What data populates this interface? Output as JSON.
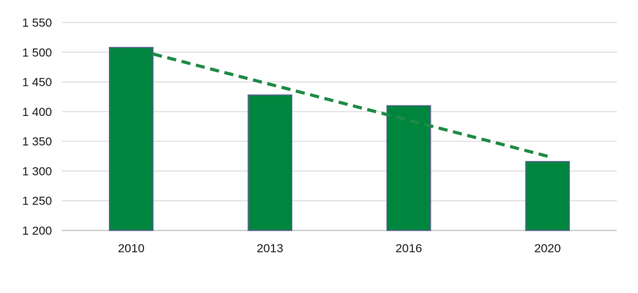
{
  "chart_data": {
    "type": "bar",
    "title": "",
    "xlabel": "",
    "ylabel": "",
    "categories": [
      "2010",
      "2013",
      "2016",
      "2020"
    ],
    "values": [
      1508,
      1428,
      1410,
      1316
    ],
    "ylim": [
      1200,
      1550
    ],
    "y_ticks": [
      1200,
      1250,
      1300,
      1350,
      1400,
      1450,
      1500,
      1550
    ],
    "y_tick_labels": [
      "1 200",
      "1 250",
      "1 300",
      "1 350",
      "1 400",
      "1 450",
      "1 500",
      "1 550"
    ],
    "grid": true,
    "legend": "none",
    "trendline": {
      "type": "linear",
      "style": "dashed",
      "start_value": 1497,
      "end_value": 1325
    },
    "colors": {
      "bar_fill": "#00853f",
      "bar_stroke": "#5a6290",
      "trendline": "#1f8a45",
      "grid": "#d0d0d0",
      "axis": "#bfbfbf"
    }
  }
}
